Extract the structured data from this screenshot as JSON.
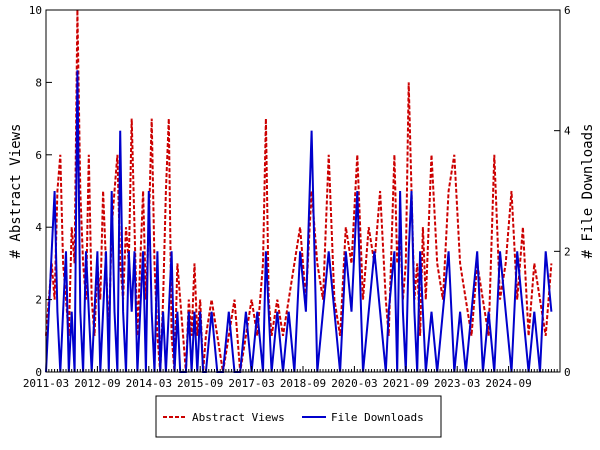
{
  "chart_data": {
    "type": "line",
    "ylabel": "# Abstract Views",
    "y2label": "# File Downloads",
    "ylim": [
      0,
      10
    ],
    "y2lim": [
      0,
      6
    ],
    "xlim": [
      "2011-03",
      "2026-03"
    ],
    "x_tick_labels": [
      "2011-03",
      "2012-09",
      "2014-03",
      "2015-09",
      "2017-03",
      "2018-09",
      "2020-03",
      "2021-09",
      "2023-03",
      "2024-09"
    ],
    "y_ticks": [
      0,
      2,
      4,
      6,
      8,
      10
    ],
    "y2_ticks": [
      0,
      2,
      4,
      6
    ],
    "legend_placement": "bottom-center",
    "colors": {
      "abstract_views": "#cc0000",
      "file_downloads": "#0000cc"
    },
    "series": [
      {
        "name": "Abstract Views",
        "axis": "left",
        "style": "dashed",
        "x": [
          "2011-03",
          "2011-05",
          "2011-06",
          "2011-07",
          "2011-08",
          "2011-09",
          "2011-10",
          "2011-11",
          "2011-12",
          "2012-01",
          "2012-02",
          "2012-03",
          "2012-04",
          "2012-05",
          "2012-06",
          "2012-07",
          "2012-08",
          "2012-09",
          "2012-10",
          "2012-11",
          "2012-12",
          "2013-01",
          "2013-02",
          "2013-03",
          "2013-04",
          "2013-05",
          "2013-06",
          "2013-07",
          "2013-08",
          "2013-09",
          "2013-10",
          "2013-11",
          "2013-12",
          "2014-01",
          "2014-02",
          "2014-03",
          "2014-04",
          "2014-05",
          "2014-06",
          "2014-07",
          "2014-08",
          "2014-09",
          "2014-10",
          "2014-11",
          "2014-12",
          "2015-01",
          "2015-02",
          "2015-03",
          "2015-04",
          "2015-05",
          "2015-06",
          "2015-07",
          "2015-08",
          "2015-09",
          "2015-10",
          "2015-11",
          "2016-01",
          "2016-03",
          "2016-05",
          "2016-07",
          "2016-09",
          "2016-11",
          "2017-01",
          "2017-03",
          "2017-05",
          "2017-07",
          "2017-08",
          "2017-09",
          "2017-10",
          "2017-12",
          "2018-02",
          "2018-04",
          "2018-06",
          "2018-08",
          "2018-10",
          "2018-12",
          "2019-02",
          "2019-04",
          "2019-06",
          "2019-08",
          "2019-10",
          "2019-12",
          "2020-02",
          "2020-04",
          "2020-06",
          "2020-08",
          "2020-10",
          "2020-12",
          "2021-02",
          "2021-03",
          "2021-05",
          "2021-06",
          "2021-07",
          "2021-08",
          "2021-09",
          "2021-10",
          "2021-11",
          "2021-12",
          "2022-01",
          "2022-02",
          "2022-03",
          "2022-04",
          "2022-06",
          "2022-08",
          "2022-10",
          "2022-12",
          "2023-02",
          "2023-04",
          "2023-06",
          "2023-08",
          "2023-10",
          "2023-12",
          "2024-02",
          "2024-04",
          "2024-06",
          "2024-08",
          "2024-10",
          "2024-12",
          "2025-02",
          "2025-04",
          "2025-06",
          "2025-08",
          "2025-10",
          "2025-12"
        ],
        "values": [
          1,
          3,
          2,
          5,
          6,
          3,
          2,
          1,
          4,
          3,
          10,
          5,
          3,
          2,
          6,
          2,
          1,
          3,
          2,
          5,
          3,
          1,
          4,
          5,
          6,
          3,
          2,
          4,
          3,
          7,
          4,
          1,
          3,
          5,
          2,
          4,
          7,
          3,
          1,
          0,
          2,
          5,
          7,
          1,
          0,
          3,
          2,
          1,
          0,
          2,
          1,
          3,
          1,
          2,
          0,
          1,
          2,
          1,
          0,
          1,
          2,
          0,
          1,
          2,
          1,
          3,
          7,
          2,
          1,
          2,
          1,
          2,
          3,
          4,
          2,
          5,
          3,
          2,
          6,
          2,
          1,
          4,
          3,
          6,
          2,
          4,
          3,
          5,
          2,
          1,
          6,
          3,
          4,
          2,
          3,
          8,
          5,
          2,
          3,
          1,
          4,
          2,
          6,
          3,
          2,
          5,
          6,
          3,
          2,
          1,
          3,
          2,
          1,
          6,
          2,
          3,
          5,
          2,
          4,
          1,
          3,
          2,
          1,
          3
        ]
      },
      {
        "name": "File Downloads",
        "axis": "right",
        "style": "solid",
        "x": [
          "2011-03",
          "2011-05",
          "2011-06",
          "2011-07",
          "2011-08",
          "2011-09",
          "2011-10",
          "2011-11",
          "2011-12",
          "2012-01",
          "2012-02",
          "2012-03",
          "2012-04",
          "2012-05",
          "2012-06",
          "2012-07",
          "2012-08",
          "2012-09",
          "2012-10",
          "2012-11",
          "2012-12",
          "2013-01",
          "2013-02",
          "2013-03",
          "2013-04",
          "2013-05",
          "2013-06",
          "2013-07",
          "2013-08",
          "2013-09",
          "2013-10",
          "2013-11",
          "2013-12",
          "2014-01",
          "2014-02",
          "2014-03",
          "2014-04",
          "2014-05",
          "2014-06",
          "2014-07",
          "2014-08",
          "2014-09",
          "2014-10",
          "2014-11",
          "2014-12",
          "2015-01",
          "2015-02",
          "2015-03",
          "2015-04",
          "2015-05",
          "2015-06",
          "2015-07",
          "2015-08",
          "2015-09",
          "2015-10",
          "2015-11",
          "2016-01",
          "2016-03",
          "2016-05",
          "2016-07",
          "2016-09",
          "2016-11",
          "2017-01",
          "2017-03",
          "2017-05",
          "2017-07",
          "2017-08",
          "2017-09",
          "2017-10",
          "2017-12",
          "2018-02",
          "2018-04",
          "2018-06",
          "2018-08",
          "2018-10",
          "2018-12",
          "2019-02",
          "2019-04",
          "2019-06",
          "2019-08",
          "2019-10",
          "2019-12",
          "2020-02",
          "2020-04",
          "2020-06",
          "2020-08",
          "2020-10",
          "2020-12",
          "2021-02",
          "2021-03",
          "2021-05",
          "2021-06",
          "2021-07",
          "2021-08",
          "2021-09",
          "2021-10",
          "2021-11",
          "2021-12",
          "2022-01",
          "2022-02",
          "2022-03",
          "2022-04",
          "2022-06",
          "2022-08",
          "2022-10",
          "2022-12",
          "2023-02",
          "2023-04",
          "2023-06",
          "2023-08",
          "2023-10",
          "2023-12",
          "2024-02",
          "2024-04",
          "2024-06",
          "2024-08",
          "2024-10",
          "2024-12",
          "2025-02",
          "2025-04",
          "2025-06",
          "2025-08",
          "2025-10",
          "2025-12"
        ],
        "values": [
          0,
          2,
          3,
          1,
          0,
          1,
          2,
          0,
          1,
          0,
          5,
          1,
          0,
          2,
          1,
          0,
          1,
          2,
          0,
          1,
          2,
          0,
          3,
          1,
          0,
          4,
          1,
          0,
          2,
          1,
          2,
          0,
          1,
          2,
          0,
          3,
          1,
          0,
          2,
          0,
          1,
          0,
          1,
          2,
          0,
          1,
          0,
          0,
          0,
          1,
          0,
          1,
          0,
          1,
          0,
          0,
          1,
          0,
          0,
          1,
          0,
          0,
          1,
          0,
          1,
          0,
          2,
          1,
          0,
          1,
          0,
          1,
          0,
          2,
          1,
          4,
          0,
          1,
          2,
          1,
          0,
          2,
          1,
          3,
          0,
          1,
          2,
          1,
          0,
          1,
          2,
          0,
          3,
          1,
          0,
          2,
          3,
          1,
          0,
          2,
          1,
          0,
          1,
          0,
          1,
          2,
          0,
          1,
          0,
          1,
          2,
          0,
          1,
          0,
          2,
          1,
          0,
          2,
          1,
          0,
          1,
          0,
          2,
          1
        ]
      }
    ]
  }
}
